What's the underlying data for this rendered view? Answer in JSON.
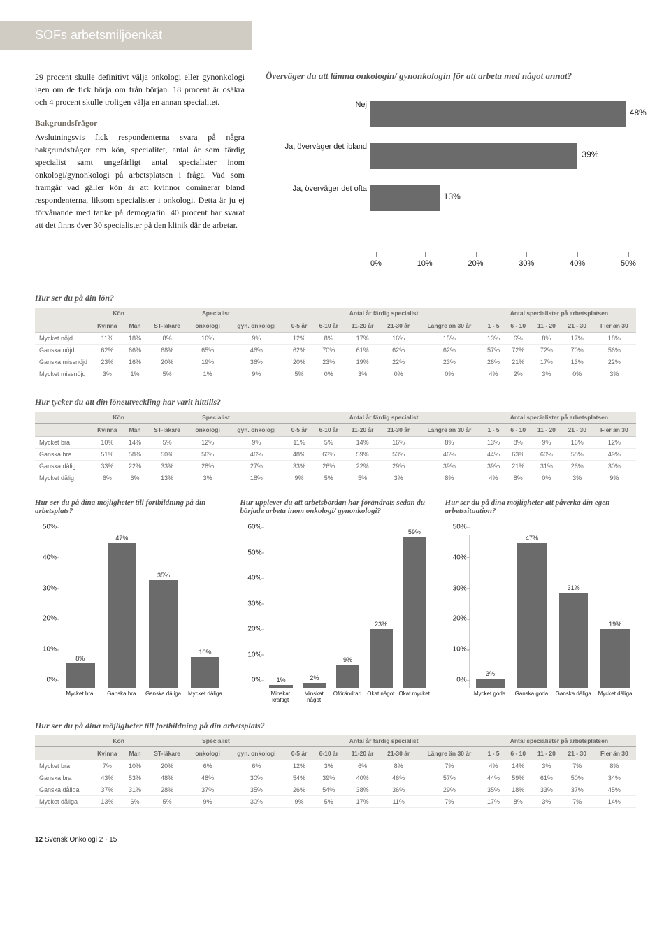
{
  "header_title": "SOFs arbetsmiljöenkät",
  "intro_para": "29 procent skulle definitivt välja onkologi eller gynonkologi igen om de fick börja om från början. 18 procent är osäkra och 4 procent skulle troligen välja en annan specialitet.",
  "bakgrund_heading": "Bakgrundsfrågor",
  "bakgrund_para": "Avslutningsvis fick respondenterna svara på några bakgrundsfrågor om kön, specialitet, antal år som färdig specialist samt ungefärligt antal specialister inom onkologi/gynonkologi på arbetsplatsen i fråga. Vad som framgår vad gäller kön är att kvinnor dominerar bland respondenterna, liksom specialister i onkologi. Detta är ju ej förvånande med tanke på demografin. 40 procent har svarat att det finns över 30 specialister på den klinik där de arbetar.",
  "hbar_chart": {
    "title": "Överväger du att lämna onkologin/ gynonkologin för att arbeta med något annat?",
    "categories": [
      "Nej",
      "Ja, överväger det ibland",
      "Ja, överväger det ofta"
    ],
    "values": [
      48,
      39,
      13
    ],
    "xmax": 50,
    "xtick_step": 10,
    "bar_color": "#6b6b6b"
  },
  "table_groups": [
    "Kön",
    "Specialist",
    "Antal år färdig specialist",
    "Antal specialister på arbetsplatsen"
  ],
  "table_cols": [
    "Kvinna",
    "Man",
    "ST-läkare",
    "onkologi",
    "gyn. onkologi",
    "0-5 år",
    "6-10 år",
    "11-20 år",
    "21-30 år",
    "Längre än 30 år",
    "1 - 5",
    "6 - 10",
    "11 - 20",
    "21 - 30",
    "Fler än 30"
  ],
  "table1": {
    "question": "Hur ser du på din lön?",
    "rows": [
      {
        "label": "Mycket nöjd",
        "cells": [
          "11%",
          "18%",
          "8%",
          "16%",
          "9%",
          "12%",
          "8%",
          "17%",
          "16%",
          "15%",
          "13%",
          "6%",
          "8%",
          "17%",
          "18%"
        ]
      },
      {
        "label": "Ganska nöjd",
        "cells": [
          "62%",
          "66%",
          "68%",
          "65%",
          "46%",
          "62%",
          "70%",
          "61%",
          "62%",
          "62%",
          "57%",
          "72%",
          "72%",
          "70%",
          "56%"
        ]
      },
      {
        "label": "Ganska missnöjd",
        "cells": [
          "23%",
          "16%",
          "20%",
          "19%",
          "36%",
          "20%",
          "23%",
          "19%",
          "22%",
          "23%",
          "26%",
          "21%",
          "17%",
          "13%",
          "22%"
        ]
      },
      {
        "label": "Mycket missnöjd",
        "cells": [
          "3%",
          "1%",
          "5%",
          "1%",
          "9%",
          "5%",
          "0%",
          "3%",
          "0%",
          "0%",
          "4%",
          "2%",
          "3%",
          "0%",
          "3%"
        ]
      }
    ]
  },
  "table2": {
    "question": "Hur tycker du att din löneutveckling har varit hittills?",
    "rows": [
      {
        "label": "Mycket bra",
        "cells": [
          "10%",
          "14%",
          "5%",
          "12%",
          "9%",
          "11%",
          "5%",
          "14%",
          "16%",
          "8%",
          "13%",
          "8%",
          "9%",
          "16%",
          "12%"
        ]
      },
      {
        "label": "Ganska bra",
        "cells": [
          "51%",
          "58%",
          "50%",
          "56%",
          "46%",
          "48%",
          "63%",
          "59%",
          "53%",
          "46%",
          "44%",
          "63%",
          "60%",
          "58%",
          "49%"
        ]
      },
      {
        "label": "Ganska dålig",
        "cells": [
          "33%",
          "22%",
          "33%",
          "28%",
          "27%",
          "33%",
          "26%",
          "22%",
          "29%",
          "39%",
          "39%",
          "21%",
          "31%",
          "26%",
          "30%"
        ]
      },
      {
        "label": "Mycket dålig",
        "cells": [
          "6%",
          "6%",
          "13%",
          "3%",
          "18%",
          "9%",
          "5%",
          "5%",
          "3%",
          "8%",
          "4%",
          "8%",
          "0%",
          "3%",
          "9%"
        ]
      }
    ]
  },
  "table3": {
    "question": "Hur ser du på dina möjligheter till fortbildning på din arbetsplats?",
    "rows": [
      {
        "label": "Mycket bra",
        "cells": [
          "7%",
          "10%",
          "20%",
          "6%",
          "6%",
          "12%",
          "3%",
          "6%",
          "8%",
          "7%",
          "4%",
          "14%",
          "3%",
          "7%",
          "8%"
        ]
      },
      {
        "label": "Ganska bra",
        "cells": [
          "43%",
          "53%",
          "48%",
          "48%",
          "30%",
          "54%",
          "39%",
          "40%",
          "46%",
          "57%",
          "44%",
          "59%",
          "61%",
          "50%",
          "34%"
        ]
      },
      {
        "label": "Ganska dåliga",
        "cells": [
          "37%",
          "31%",
          "28%",
          "37%",
          "35%",
          "26%",
          "54%",
          "38%",
          "36%",
          "29%",
          "35%",
          "18%",
          "33%",
          "37%",
          "45%"
        ]
      },
      {
        "label": "Mycket dåliga",
        "cells": [
          "13%",
          "6%",
          "5%",
          "9%",
          "30%",
          "9%",
          "5%",
          "17%",
          "11%",
          "7%",
          "17%",
          "8%",
          "3%",
          "7%",
          "14%"
        ]
      }
    ]
  },
  "vcharts": [
    {
      "title": "Hur ser du på dina möjligheter till fortbildning på din arbetsplats?",
      "ymax": 50,
      "ystep": 10,
      "labels": [
        "Mycket bra",
        "Ganska bra",
        "Ganska dåliga",
        "Mycket dåliga"
      ],
      "values": [
        8,
        47,
        35,
        10
      ]
    },
    {
      "title": "Hur upplever du att arbetsbördan har förändrats sedan du började arbeta inom onkologi/ gynonkologi?",
      "ymax": 60,
      "ystep": 10,
      "labels": [
        "Minskat kraftigt",
        "Minskat något",
        "Oförändrad",
        "Ökat något",
        "Ökat mycket"
      ],
      "values": [
        1,
        2,
        9,
        23,
        59
      ]
    },
    {
      "title": "Hur ser du på dina möjligheter att påverka din egen arbetssituation?",
      "ymax": 50,
      "ystep": 10,
      "labels": [
        "Mycket goda",
        "Ganska goda",
        "Ganska dåliga",
        "Mycket dåliga"
      ],
      "values": [
        3,
        47,
        31,
        19
      ]
    }
  ],
  "footer": {
    "page": "12",
    "pub": "Svensk Onkologi",
    "issue": "2 · 15"
  }
}
